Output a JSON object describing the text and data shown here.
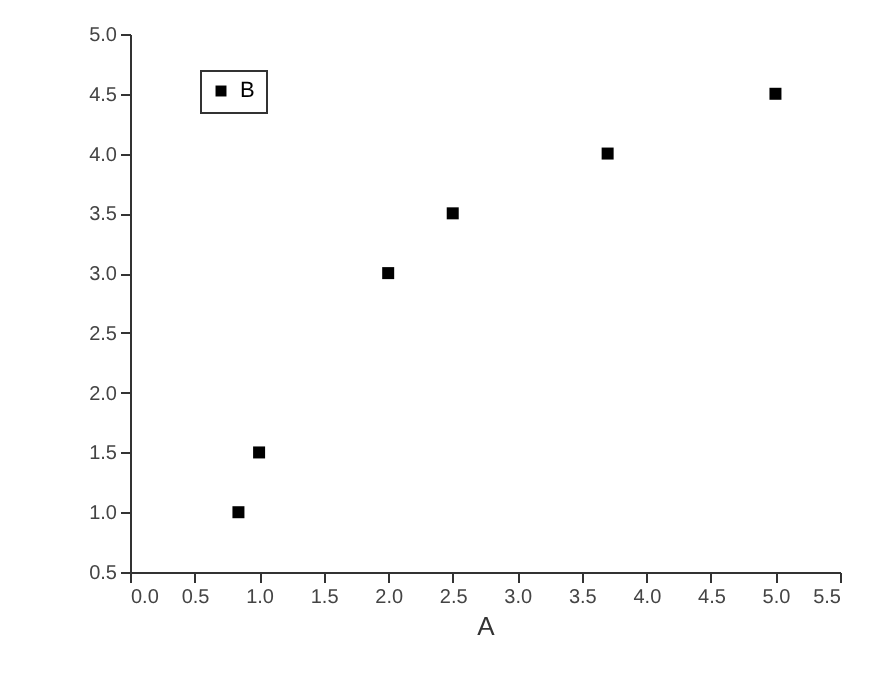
{
  "chart_data": {
    "type": "scatter",
    "xlabel": "A",
    "x": [
      0.84,
      1.0,
      2.0,
      2.5,
      3.7,
      5.0
    ],
    "series": [
      {
        "name": "B",
        "color": "#000000",
        "values": [
          1.0,
          1.5,
          3.0,
          3.5,
          4.0,
          4.5
        ]
      }
    ],
    "xlim": [
      0,
      5.5
    ],
    "xticks": [
      {
        "value": 0,
        "label": "0.0"
      },
      0.5,
      {
        "value": 1,
        "label": "1.0"
      },
      1.5,
      {
        "value": 2,
        "label": "2.0"
      },
      2.5,
      {
        "value": 3,
        "label": "3.0"
      },
      3.5,
      {
        "value": 4,
        "label": "4.0"
      },
      4.5,
      {
        "value": 5,
        "label": "5.0"
      },
      5.5
    ],
    "ylim": [
      0.5,
      5.0
    ],
    "yticks": [
      0.5,
      {
        "value": 1,
        "label": "1.0"
      },
      1.5,
      {
        "value": 2,
        "label": "2.0"
      },
      2.5,
      {
        "value": 3,
        "label": "3.0"
      },
      3.5,
      {
        "value": 4,
        "label": "4.0"
      },
      4.5,
      {
        "value": 5,
        "label": "5.0"
      }
    ],
    "marker": "square",
    "legend": "top left",
    "grid": false
  }
}
